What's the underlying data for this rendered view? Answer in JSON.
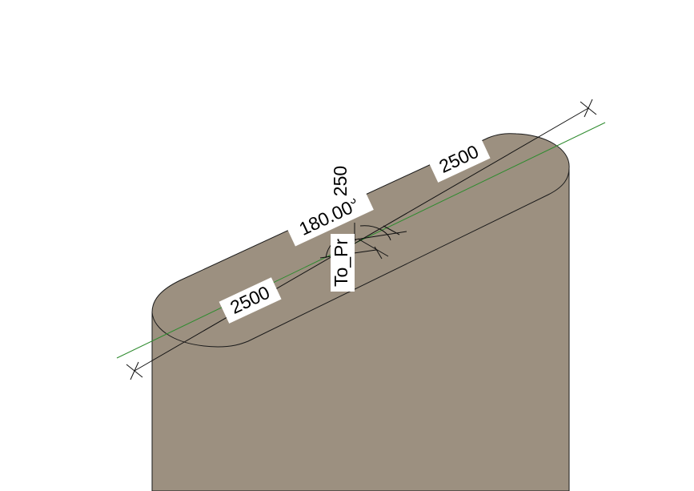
{
  "colors": {
    "background": "#ffffff",
    "solid_fill": "#9c9080",
    "edge": "#1a1a1a",
    "reference_line": "#2e8b2e",
    "dimension_line": "#111111"
  },
  "dimensions": {
    "length_left": "2500",
    "length_right": "2500",
    "width": "250",
    "angle": "180.00°",
    "parameter_label": "To_Pr"
  }
}
